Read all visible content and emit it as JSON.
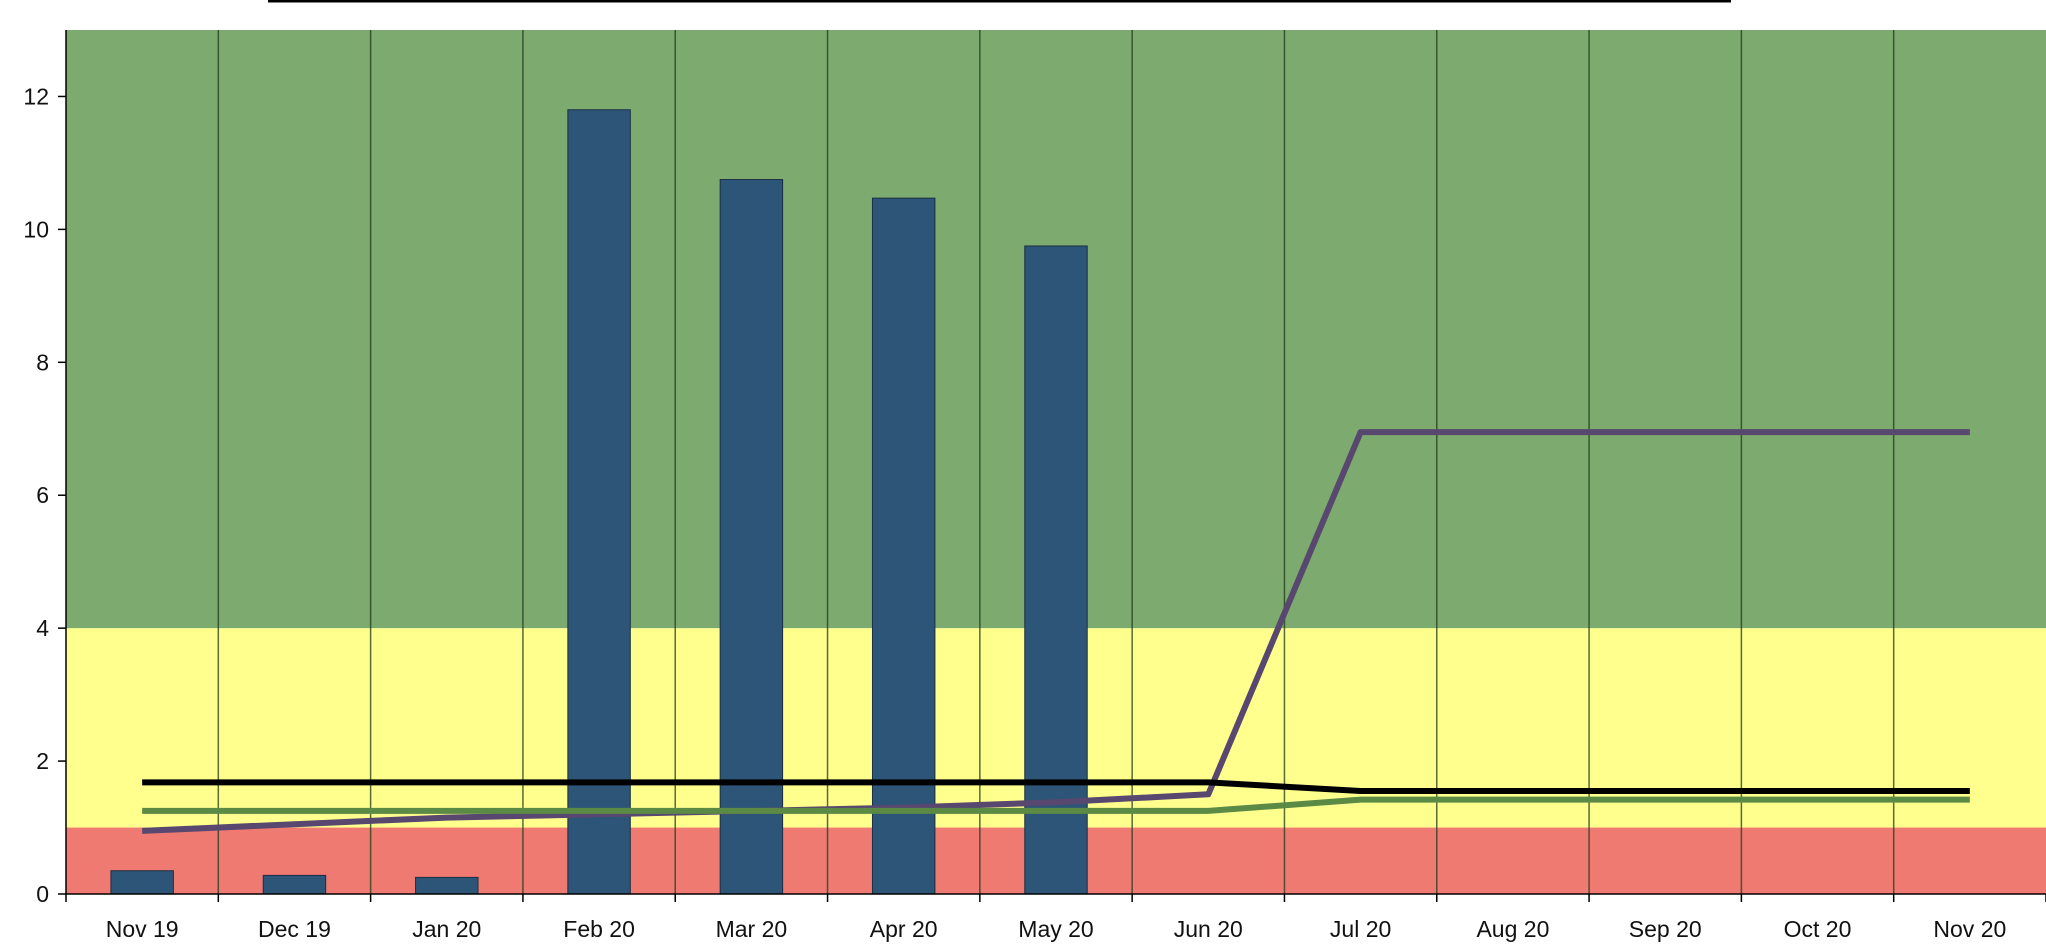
{
  "chart_data": {
    "type": "bar",
    "categories": [
      "Nov 19",
      "Dec 19",
      "Jan 20",
      "Feb 20",
      "Mar 20",
      "Apr 20",
      "May 20",
      "Jun 20",
      "Jul 20",
      "Aug 20",
      "Sep 20",
      "Oct 20",
      "Nov 20"
    ],
    "bars": {
      "values": [
        0.35,
        0.28,
        0.25,
        11.8,
        10.75,
        10.47,
        9.75,
        null,
        null,
        null,
        null,
        null,
        null
      ],
      "color": "#2c5577"
    },
    "lines": [
      {
        "color": "#58476f",
        "values": [
          0.95,
          1.05,
          1.15,
          1.2,
          1.25,
          1.3,
          1.38,
          1.5,
          6.95,
          6.95,
          6.95,
          6.95,
          6.95
        ]
      },
      {
        "color": "#000000",
        "values": [
          1.68,
          1.68,
          1.68,
          1.68,
          1.68,
          1.68,
          1.68,
          1.68,
          1.55,
          1.55,
          1.55,
          1.55,
          1.55
        ]
      },
      {
        "color": "#5b8a45",
        "values": [
          1.25,
          1.25,
          1.25,
          1.25,
          1.25,
          1.25,
          1.25,
          1.25,
          1.42,
          1.42,
          1.42,
          1.42,
          1.42
        ]
      }
    ],
    "bands": [
      {
        "from": 0,
        "to": 1,
        "color": "#ee7a72"
      },
      {
        "from": 1,
        "to": 4,
        "color": "#ffff8e"
      },
      {
        "from": 4,
        "to": 13,
        "color": "#7daa6e"
      }
    ],
    "yticks": [
      "0",
      "2",
      "4",
      "6",
      "8",
      "10",
      "12"
    ],
    "ylim": [
      0,
      13
    ],
    "grid": "vertical",
    "title": "",
    "xlabel": "",
    "ylabel": ""
  }
}
